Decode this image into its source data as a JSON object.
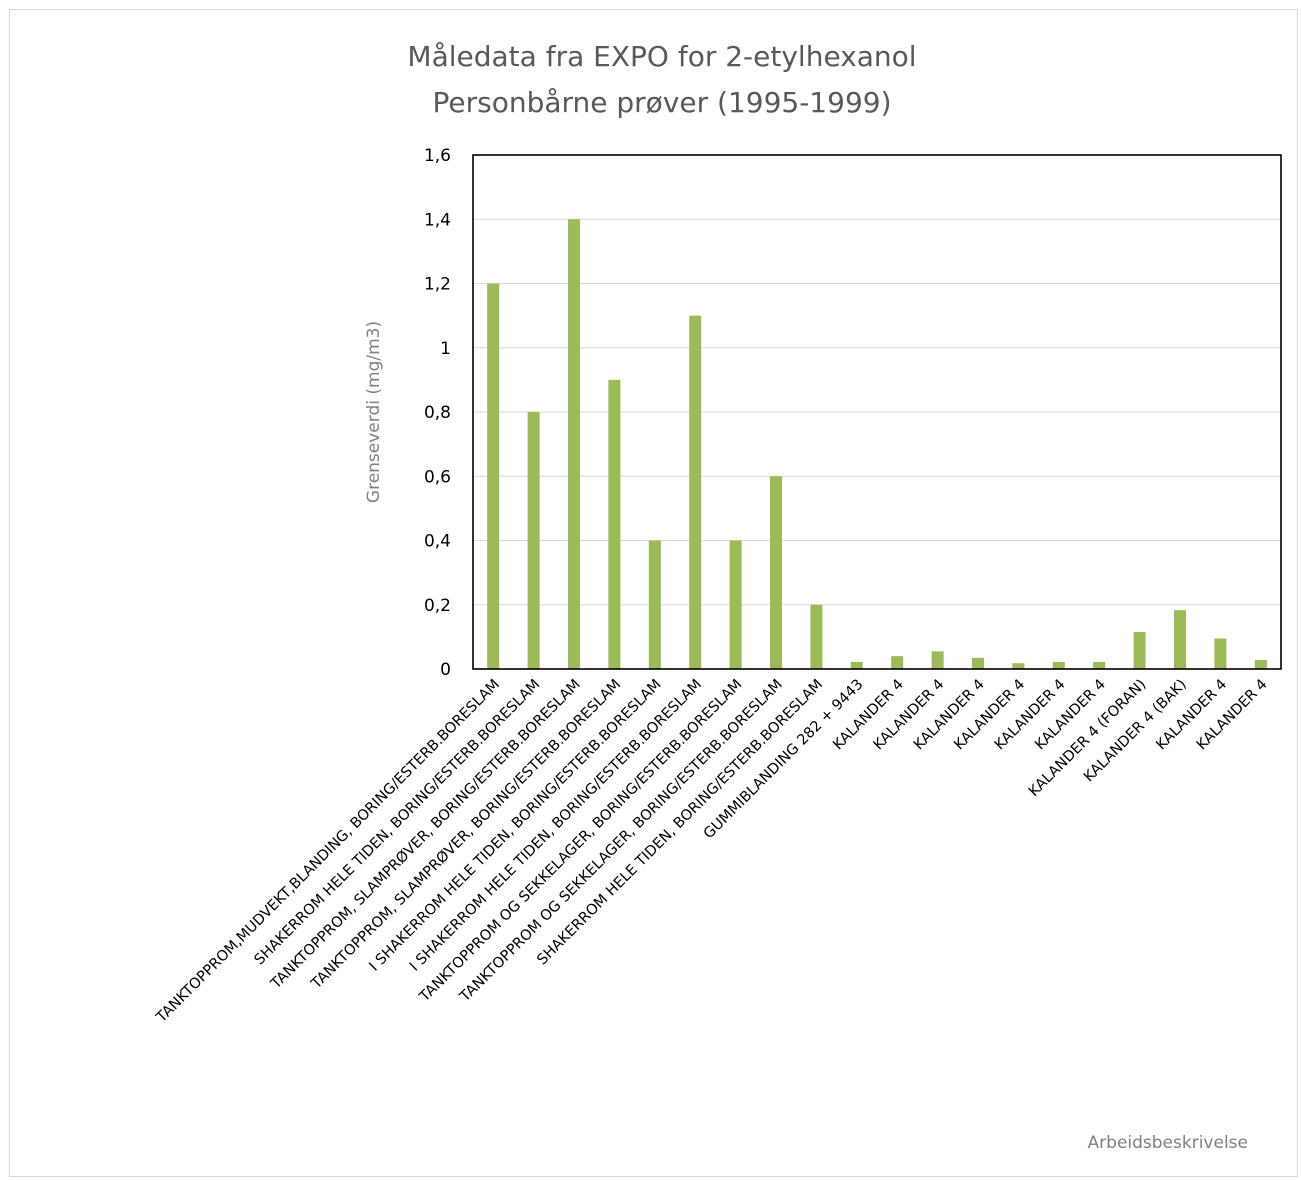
{
  "chart_data": {
    "type": "bar",
    "title_lines": [
      "Måledata fra EXPO for 2-etylhexanol",
      "Personbårne prøver (1995-1999)"
    ],
    "xlabel": "Arbeidsbeskrivelse",
    "ylabel": "Grenseverdi (mg/m3)",
    "ylim": [
      0,
      1.6
    ],
    "yticks": [
      0,
      0.2,
      0.4,
      0.6,
      0.8,
      1.0,
      1.2,
      1.4,
      1.6
    ],
    "ytick_labels": [
      "0",
      "0,2",
      "0,4",
      "0,6",
      "0,8",
      "1",
      "1,2",
      "1,4",
      "1,6"
    ],
    "grid": true,
    "bar_color": "#9bbb59",
    "categories": [
      "TANKTOPPROM,MUDVEKT,BLANDING, BORING/ESTERB.BORESLAM",
      "SHAKERROM HELE TIDEN, BORING/ESTERB.BORESLAM",
      "TANKTOPPROM, SLAMPRØVER, BORING/ESTERB.BORESLAM",
      "TANKTOPPROM, SLAMPRØVER, BORING/ESTERB.BORESLAM",
      "I SHAKERROM HELE TIDEN, BORING/ESTERB.BORESLAM",
      "I SHAKERROM HELE TIDEN, BORING/ESTERB.BORESLAM",
      "TANKTOPPROM OG SEKKELAGER, BORING/ESTERB.BORESLAM",
      "TANKTOPPROM OG SEKKELAGER, BORING/ESTERB.BORESLAM",
      "SHAKERROM HELE TIDEN, BORING/ESTERB.BORESLAM",
      "GUMMIBLANDING 282 + 9443",
      "KALANDER 4",
      "KALANDER 4",
      "KALANDER 4",
      "KALANDER 4",
      "KALANDER 4",
      "KALANDER 4",
      "KALANDER 4 (FORAN)",
      "KALANDER 4 (BAK)",
      "KALANDER 4",
      "KALANDER 4"
    ],
    "values": [
      1.2,
      0.8,
      1.4,
      0.9,
      0.4,
      1.1,
      0.4,
      0.6,
      0.2,
      0.022,
      0.04,
      0.055,
      0.035,
      0.018,
      0.022,
      0.022,
      0.115,
      0.183,
      0.095,
      0.028
    ]
  }
}
